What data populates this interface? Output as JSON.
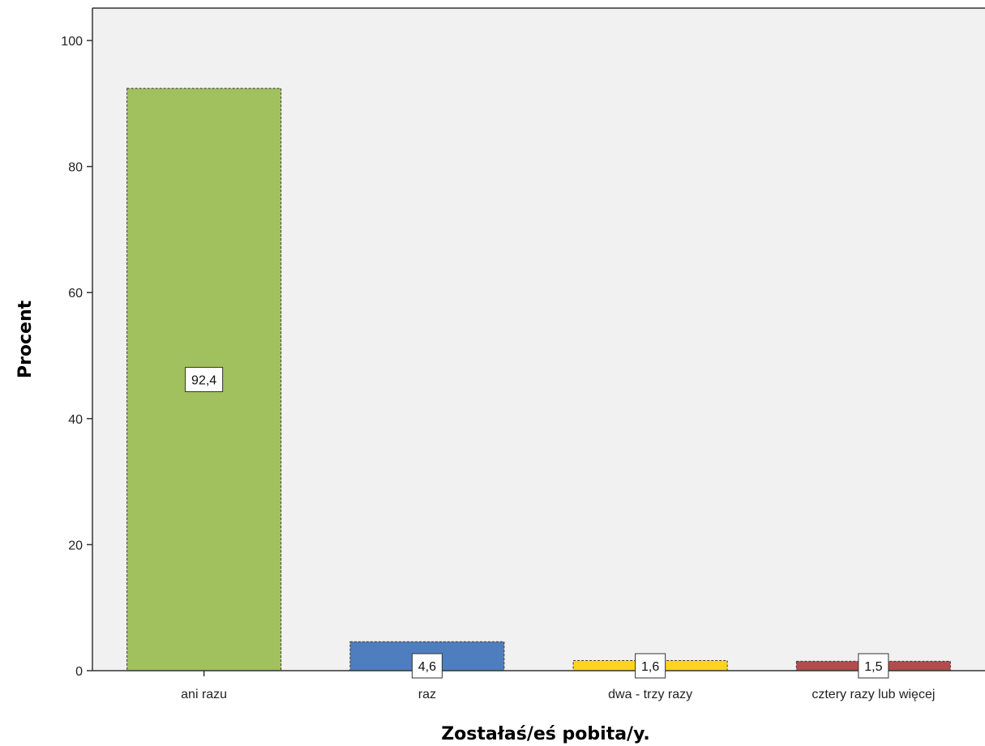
{
  "chart_data": {
    "type": "bar",
    "categories": [
      "ani razu",
      "raz",
      "dwa - trzy razy",
      "cztery razy lub więcej"
    ],
    "values": [
      92.4,
      4.6,
      1.6,
      1.5
    ],
    "data_labels": [
      "92,4",
      "4,6",
      "1,6",
      "1,5"
    ],
    "colors": [
      "#a1c05e",
      "#4f7ebf",
      "#ffd41c",
      "#b04d4d"
    ],
    "xlabel": "Zostałaś/eś pobita/y.",
    "ylabel": "Procent",
    "ylim": [
      0,
      105
    ],
    "yticks": [
      0,
      20,
      40,
      60,
      80,
      100
    ],
    "ytick_labels": [
      "0",
      "20",
      "40",
      "60",
      "80",
      "100"
    ],
    "grid": false,
    "plot_background": "#f1f1f1"
  }
}
